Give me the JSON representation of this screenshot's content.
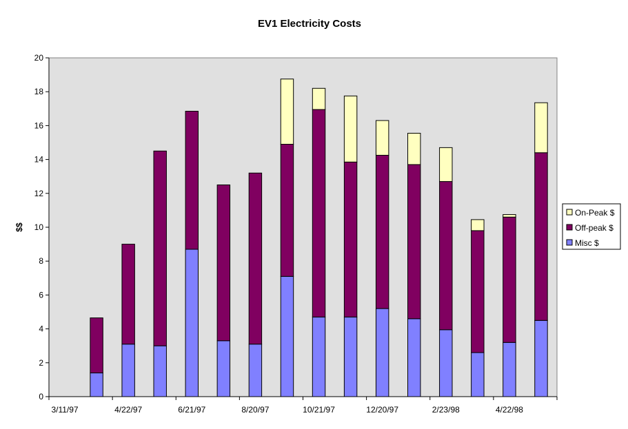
{
  "chart_data": {
    "type": "bar",
    "stacked": true,
    "title": "EV1 Electricity Costs",
    "xlabel": "",
    "ylabel": "$$",
    "ylim": [
      0,
      20
    ],
    "yticks": [
      0,
      2,
      4,
      6,
      8,
      10,
      12,
      14,
      16,
      18,
      20
    ],
    "x_tick_labels": [
      "3/11/97",
      "4/22/97",
      "6/21/97",
      "8/20/97",
      "10/21/97",
      "12/20/97",
      "2/23/98",
      "4/22/98"
    ],
    "category_count": 16,
    "grid": false,
    "plot_background": "#e0e0e0",
    "legend_position": "right",
    "series": [
      {
        "name": "Misc $",
        "color": "#8080ff",
        "values": [
          0,
          1.4,
          3.1,
          3.0,
          8.7,
          3.3,
          3.1,
          7.1,
          4.7,
          4.7,
          5.2,
          4.6,
          3.95,
          2.6,
          3.2,
          4.5
        ]
      },
      {
        "name": "Off-peak $",
        "color": "#800060",
        "values": [
          0,
          3.25,
          5.9,
          11.5,
          8.15,
          9.2,
          10.1,
          7.8,
          12.25,
          9.15,
          9.05,
          9.1,
          8.75,
          7.2,
          7.4,
          9.9
        ]
      },
      {
        "name": "On-Peak $",
        "color": "#ffffc0",
        "values": [
          0,
          0,
          0,
          0,
          0,
          0,
          0,
          3.85,
          1.25,
          3.9,
          2.05,
          1.85,
          2.0,
          0.65,
          0.15,
          2.95
        ]
      }
    ]
  }
}
